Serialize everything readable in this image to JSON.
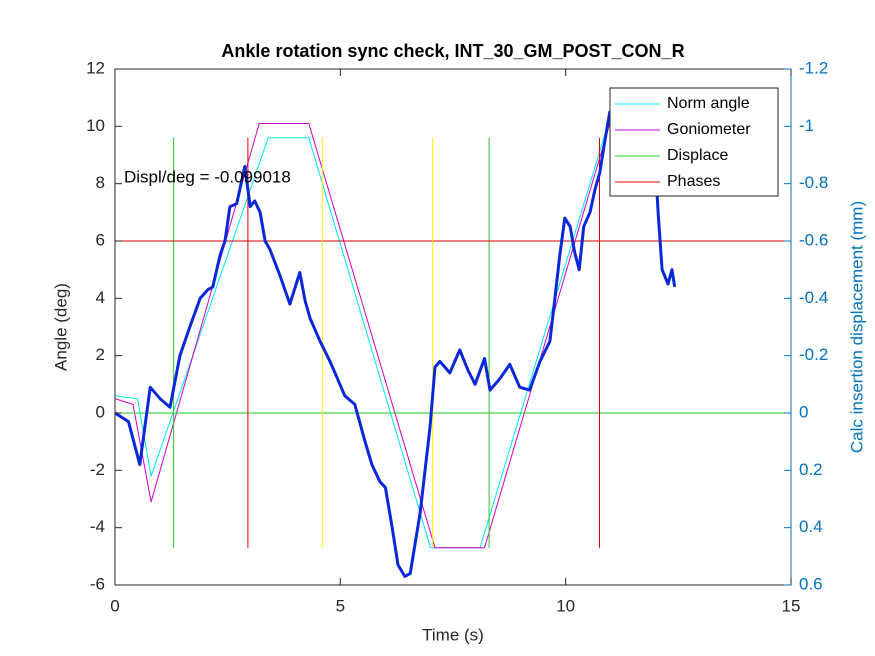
{
  "chart_data": {
    "type": "line",
    "title": "Ankle rotation sync check, INT_30_GM_POST_CON_R",
    "x_label": "Time (s)",
    "y_label": "Angle (deg)",
    "y2_label": "Calc insertion displacement (mm)",
    "annotation": "Displ/deg = -0.099018",
    "xlim": [
      0,
      15
    ],
    "xticks": [
      0,
      5,
      10,
      15
    ],
    "ylim": [
      -6,
      12
    ],
    "yticks": [
      -6,
      -4,
      -2,
      0,
      2,
      4,
      6,
      8,
      10,
      12
    ],
    "y2lim": [
      -1.2,
      0.6
    ],
    "y2ticks": [
      -1.2,
      -1,
      -0.8,
      -0.6,
      -0.4,
      -0.2,
      0,
      0.2,
      0.4,
      0.6
    ],
    "y2_reversed": true,
    "y2_color": "#0072bd",
    "legend": "top-right",
    "series": [
      {
        "name": "Norm angle",
        "color": "#00e5ee",
        "width": 1,
        "x": [
          0,
          0.5,
          0.8,
          3.4,
          4.3,
          7.0,
          8.1,
          11.0
        ],
        "values": [
          0.6,
          0.5,
          -2.2,
          9.6,
          9.6,
          -4.7,
          -4.7,
          10.4
        ]
      },
      {
        "name": "Goniometer",
        "color": "#cc00cc",
        "width": 1,
        "x": [
          0,
          0.4,
          0.8,
          3.2,
          4.3,
          7.1,
          8.2,
          11.0
        ],
        "values": [
          0.5,
          0.3,
          -3.1,
          10.1,
          10.1,
          -4.7,
          -4.7,
          10.2
        ]
      },
      {
        "name": "Displace",
        "color": "#22cc22",
        "width": 1,
        "x": [
          0,
          15,
          15,
          1.3,
          1.3,
          1.3,
          8.3,
          8.3
        ],
        "values": [
          0,
          0,
          null,
          -4.7,
          9.6,
          null,
          -4.7,
          9.6
        ]
      },
      {
        "name": "Phases",
        "color": "#dd0000",
        "width": 1,
        "x": [
          0,
          15,
          15,
          2.95,
          2.95,
          2.95,
          10.75,
          10.75
        ],
        "values": [
          6,
          6,
          null,
          -4.7,
          9.6,
          null,
          -4.7,
          9.6
        ]
      },
      {
        "color": "#ffee00",
        "width": 1,
        "x": [
          4.6,
          4.6,
          4.6,
          7.05,
          7.05
        ],
        "values": [
          -4.7,
          9.6,
          null,
          -4.7,
          9.6
        ]
      },
      {
        "color": "#0a28d8",
        "width": 3,
        "axis": "y2",
        "x": [
          0,
          0.3,
          0.55,
          0.78,
          1.0,
          1.22,
          1.44,
          1.66,
          1.89,
          2.06,
          2.17,
          2.33,
          2.44,
          2.55,
          2.7,
          2.88,
          3.0,
          3.1,
          3.22,
          3.33,
          3.44,
          3.66,
          3.77,
          3.88,
          4.04,
          4.1,
          4.22,
          4.33,
          4.55,
          4.77,
          4.99,
          5.1,
          5.32,
          5.55,
          5.7,
          5.88,
          6.0,
          6.15,
          6.28,
          6.43,
          6.55,
          6.77,
          6.99,
          7.1,
          7.21,
          7.43,
          7.65,
          7.83,
          7.99,
          8.2,
          8.32,
          8.54,
          8.76,
          8.98,
          9.2,
          9.43,
          9.65,
          9.76,
          9.87,
          9.98,
          10.1,
          10.2,
          10.3,
          10.4,
          10.54,
          10.65,
          10.76,
          10.87,
          10.98,
          11.43,
          11.87,
          11.98,
          12.05,
          12.14,
          12.27,
          12.36,
          12.42
        ],
        "values": [
          0,
          0.03,
          0.18,
          -0.09,
          -0.05,
          -0.02,
          -0.2,
          -0.3,
          -0.4,
          -0.43,
          -0.44,
          -0.55,
          -0.6,
          -0.72,
          -0.73,
          -0.86,
          -0.72,
          -0.74,
          -0.7,
          -0.6,
          -0.57,
          -0.48,
          -0.43,
          -0.38,
          -0.46,
          -0.49,
          -0.39,
          -0.33,
          -0.25,
          -0.18,
          -0.1,
          -0.06,
          -0.03,
          0.1,
          0.18,
          0.24,
          0.26,
          0.4,
          0.53,
          0.57,
          0.56,
          0.35,
          0.05,
          -0.16,
          -0.18,
          -0.14,
          -0.22,
          -0.15,
          -0.1,
          -0.19,
          -0.08,
          -0.12,
          -0.17,
          -0.09,
          -0.08,
          -0.18,
          -0.25,
          -0.4,
          -0.55,
          -0.68,
          -0.65,
          -0.56,
          -0.5,
          -0.65,
          -0.7,
          -0.78,
          -0.84,
          -0.95,
          -1.05,
          -1.08,
          -1.05,
          -0.9,
          -0.7,
          -0.5,
          -0.45,
          -0.5,
          -0.44
        ]
      }
    ]
  }
}
